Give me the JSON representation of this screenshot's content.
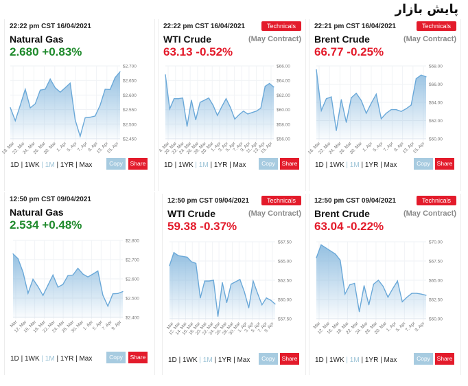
{
  "page": {
    "title": "پایش بازار"
  },
  "common": {
    "technicals_label": "Technicals",
    "contract_label": "(May Contract)",
    "ranges": [
      "1D",
      "1WK",
      "1M",
      "1YR",
      "Max"
    ],
    "active_range": "1M",
    "copy_label": "Copy",
    "share_label": "Share"
  },
  "colors": {
    "up": "#1f8a2c",
    "down": "#e31b2b",
    "line": "#6aa8d8",
    "fill": "#a9cde6",
    "share": "#e31b2b",
    "copy": "#a7cbe0"
  },
  "cards": [
    {
      "timestamp": "22:22 pm CST 16/04/2021",
      "name": "Natural Gas",
      "price": "2.680",
      "change": "+0.83%",
      "direction": "up",
      "has_technicals": false
    },
    {
      "timestamp": "22:22 pm CST 16/04/2021",
      "name": "WTI Crude",
      "price": "63.13",
      "change": "-0.52%",
      "direction": "down",
      "has_technicals": true
    },
    {
      "timestamp": "22:21 pm CST 16/04/2021",
      "name": "Brent Crude",
      "price": "66.77",
      "change": "-0.25%",
      "direction": "down",
      "has_technicals": true
    },
    {
      "timestamp": "12:50 pm CST 09/04/2021",
      "name": "Natural Gas",
      "price": "2.534",
      "change": "+0.48%",
      "direction": "up",
      "has_technicals": false
    },
    {
      "timestamp": "12:50 pm CST 09/04/2021",
      "name": "WTI Crude",
      "price": "59.38",
      "change": "-0.37%",
      "direction": "down",
      "has_technicals": true
    },
    {
      "timestamp": "12:50 pm CST 09/04/2021",
      "name": "Brent Crude",
      "price": "63.04",
      "change": "-0.22%",
      "direction": "down",
      "has_technicals": true
    }
  ],
  "chart_data": [
    {
      "type": "area",
      "title": "Natural Gas 1M",
      "ylim": [
        2.45,
        2.7
      ],
      "yticks": [
        "$2.700",
        "$2.650",
        "$2.600",
        "$2.550",
        "$2.500",
        "$2.450"
      ],
      "ytick_values": [
        2.7,
        2.65,
        2.6,
        2.55,
        2.5,
        2.45
      ],
      "xticks": [
        "18. Mar",
        "22. Mar",
        "24. Mar",
        "26. Mar",
        "30. Mar",
        "1. Apr",
        "5. Apr",
        "7. Apr",
        "9. Apr",
        "13. Apr",
        "15. Apr"
      ],
      "values": [
        2.557,
        2.512,
        2.565,
        2.62,
        2.556,
        2.57,
        2.617,
        2.62,
        2.655,
        2.625,
        2.61,
        2.625,
        2.641,
        2.515,
        2.458,
        2.522,
        2.524,
        2.528,
        2.565,
        2.62,
        2.619,
        2.66,
        2.68
      ]
    },
    {
      "type": "area",
      "title": "WTI Crude 1M",
      "ylim": [
        56,
        66
      ],
      "yticks": [
        "$66.00",
        "$64.00",
        "$62.00",
        "$60.00",
        "$58.00",
        "$56.00"
      ],
      "ytick_values": [
        66,
        64,
        62,
        60,
        58,
        56
      ],
      "xticks": [
        "4. Mar",
        "20. Mar",
        "22. Mar",
        "24. Mar",
        "26. Mar",
        "28. Mar",
        "30. Mar",
        "1. Apr",
        "3. Apr",
        "5. Apr",
        "7. Apr",
        "9. Apr",
        "11. Apr",
        "13. Apr",
        "15. Apr"
      ],
      "values": [
        64.8,
        60.1,
        61.5,
        61.5,
        61.6,
        57.7,
        61.3,
        58.6,
        61.0,
        61.3,
        61.6,
        60.6,
        59.2,
        60.4,
        61.5,
        60.3,
        58.7,
        59.3,
        59.8,
        59.4,
        59.6,
        59.8,
        60.2,
        63.2,
        63.6,
        63.1
      ]
    },
    {
      "type": "area",
      "title": "Brent Crude 1M",
      "ylim": [
        60,
        68
      ],
      "yticks": [
        "$68.00",
        "$66.00",
        "$64.00",
        "$62.00",
        "$60.00"
      ],
      "ytick_values": [
        68,
        66,
        64,
        62,
        60
      ],
      "xticks": [
        "16. Mar",
        "22. Mar",
        "24. Mar",
        "26. Mar",
        "30. Mar",
        "1. Apr",
        "5. Apr",
        "7. Apr",
        "9. Apr",
        "13. Apr",
        "15. Apr"
      ],
      "values": [
        67.6,
        63.1,
        64.4,
        64.6,
        60.9,
        64.3,
        61.8,
        64.5,
        65.0,
        64.2,
        62.8,
        63.9,
        64.9,
        62.2,
        62.8,
        63.2,
        63.2,
        63.0,
        63.3,
        63.7,
        66.6,
        67.0,
        66.8
      ]
    },
    {
      "type": "area",
      "title": "Natural Gas 1M",
      "ylim": [
        2.4,
        2.8
      ],
      "yticks": [
        "$2.800",
        "$2.700",
        "$2.600",
        "$2.500",
        "$2.400"
      ],
      "ytick_values": [
        2.8,
        2.7,
        2.6,
        2.5,
        2.4
      ],
      "xticks": [
        "Mar",
        "12. Mar",
        "16. Mar",
        "18. Mar",
        "22. Mar",
        "24. Mar",
        "26. Mar",
        "30. Mar",
        "1. Apr",
        "5. Apr",
        "7. Apr",
        "9. Apr"
      ],
      "values": [
        2.73,
        2.705,
        2.635,
        2.525,
        2.598,
        2.56,
        2.514,
        2.567,
        2.62,
        2.557,
        2.571,
        2.617,
        2.62,
        2.655,
        2.625,
        2.61,
        2.625,
        2.641,
        2.515,
        2.458,
        2.522,
        2.524,
        2.534
      ]
    },
    {
      "type": "area",
      "title": "WTI Crude 1M",
      "ylim": [
        57.5,
        67.5
      ],
      "yticks": [
        "$67.50",
        "$65.00",
        "$62.50",
        "$60.00",
        "$57.50"
      ],
      "ytick_values": [
        67.5,
        65.0,
        62.5,
        60.0,
        57.5
      ],
      "xticks": [
        "Mar",
        "12. Mar",
        "14. Mar",
        "16. Mar",
        "18. Mar",
        "20. Mar",
        "22. Mar",
        "24. Mar",
        "26. Mar",
        "28. Mar",
        "30. Mar",
        "1. Apr",
        "3. Apr",
        "5. Apr",
        "7. Apr",
        "9. Apr"
      ],
      "values": [
        64.4,
        66.1,
        65.7,
        65.6,
        65.5,
        64.9,
        64.7,
        60.2,
        62.4,
        62.4,
        62.5,
        57.8,
        62.2,
        59.6,
        62.0,
        62.3,
        62.6,
        61.0,
        58.9,
        62.4,
        60.8,
        59.3,
        60.2,
        59.9,
        59.4
      ]
    },
    {
      "type": "area",
      "title": "Brent Crude 1M",
      "ylim": [
        60,
        70
      ],
      "yticks": [
        "$70.00",
        "$67.50",
        "$65.00",
        "$62.50",
        "$60.00"
      ],
      "ytick_values": [
        70,
        67.5,
        65,
        62.5,
        60
      ],
      "xticks": [
        "Mar",
        "12. Mar",
        "16. Mar",
        "18. Mar",
        "22. Mar",
        "24. Mar",
        "26. Mar",
        "30. Mar",
        "1. Apr",
        "5. Apr",
        "7. Apr",
        "9. Apr"
      ],
      "values": [
        67.9,
        69.6,
        69.2,
        68.8,
        68.4,
        67.6,
        63.2,
        64.4,
        64.6,
        60.9,
        64.3,
        61.8,
        64.5,
        65.0,
        64.2,
        62.8,
        63.9,
        64.9,
        62.2,
        62.8,
        63.3,
        63.3,
        63.2,
        63.04
      ]
    }
  ]
}
